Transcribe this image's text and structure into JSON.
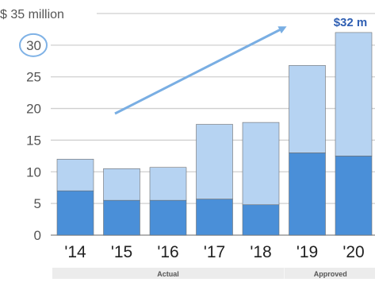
{
  "chart_data": {
    "type": "bar",
    "stacked": true,
    "y_unit_label": "$ 35 million",
    "categories": [
      "'14",
      "'15",
      "'16",
      "'17",
      "'18",
      "'19",
      "'20"
    ],
    "series": [
      {
        "values": [
          7,
          5.5,
          5.5,
          5.7,
          4.8,
          13,
          12.5
        ],
        "color": "#4a8fd8"
      },
      {
        "values": [
          5,
          5,
          5.2,
          11.8,
          13,
          13.8,
          19.5
        ],
        "color": "#b6d3f2"
      }
    ],
    "totals": [
      12,
      10.5,
      10.7,
      17.5,
      17.8,
      26.8,
      32
    ],
    "ylim": [
      0,
      35
    ],
    "yticks": [
      "0",
      "5",
      "10",
      "15",
      "20",
      "25",
      "30"
    ],
    "grid": true,
    "highlighted_tick": "30",
    "callout": {
      "category": "'20",
      "text": "$32 m"
    },
    "trend_arrow": true,
    "groups": [
      {
        "label": "Actual",
        "categories": [
          "'14",
          "'15",
          "'16",
          "'17",
          "'18"
        ]
      },
      {
        "label": "Approved",
        "categories": [
          "'19",
          "'20"
        ]
      }
    ],
    "colors": {
      "grid": "#cfcfcf",
      "axis": "#9a9a9a",
      "arrow": "#79aee3",
      "circle": "#7fb2e6",
      "bar_edge": "#6e6e6e",
      "group_band": "#ececec"
    }
  }
}
